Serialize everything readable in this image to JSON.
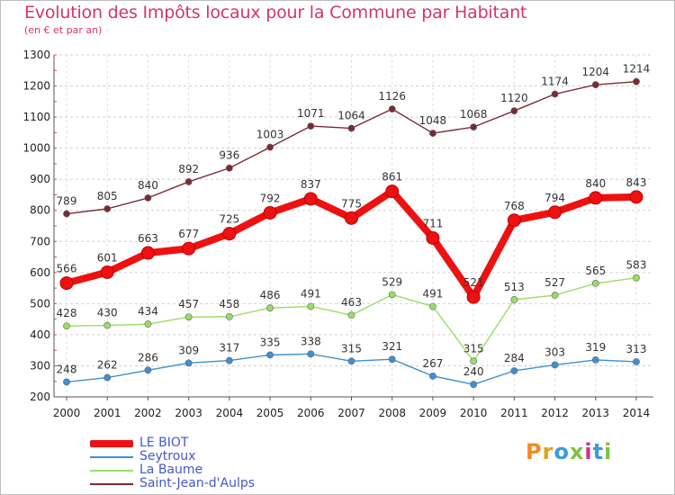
{
  "chart_data": {
    "type": "line",
    "title": "Evolution des Impôts locaux pour la Commune par Habitant",
    "subtitle": "(en € et par an)",
    "xlabel": "",
    "ylabel": "",
    "categories": [
      "2000",
      "2001",
      "2002",
      "2003",
      "2004",
      "2005",
      "2006",
      "2007",
      "2008",
      "2009",
      "2010",
      "2011",
      "2012",
      "2013",
      "2014"
    ],
    "yticks": [
      200,
      300,
      400,
      500,
      600,
      700,
      800,
      900,
      1000,
      1100,
      1200,
      1300
    ],
    "ylim": [
      200,
      1300
    ],
    "grid": "horizontal dashed",
    "legend_position": "bottom-left",
    "series": [
      {
        "name": "Saint-Jean-d'Aulps",
        "color": "#7a2a35",
        "values": [
          789,
          805,
          840,
          892,
          936,
          1003,
          1071,
          1064,
          1126,
          1048,
          1068,
          1120,
          1174,
          1204,
          1214
        ]
      },
      {
        "name": "LE BIOT",
        "color": "#ee1111",
        "values": [
          566,
          601,
          663,
          677,
          725,
          792,
          837,
          775,
          861,
          711,
          521,
          768,
          794,
          840,
          843
        ]
      },
      {
        "name": "La Baume",
        "color": "#99dd66",
        "values": [
          428,
          430,
          434,
          457,
          458,
          486,
          491,
          463,
          529,
          491,
          315,
          513,
          527,
          565,
          583
        ]
      },
      {
        "name": "Seytroux",
        "color": "#3f8fd0",
        "values": [
          248,
          262,
          286,
          309,
          317,
          335,
          338,
          315,
          321,
          267,
          240,
          284,
          303,
          319,
          313
        ]
      }
    ],
    "legend": [
      "LE BIOT",
      "Seytroux",
      "La Baume",
      "Saint-Jean-d'Aulps"
    ]
  },
  "logo": {
    "text": "Proxiti",
    "colors": [
      "#f28c1e",
      "#e2a11a",
      "#3b9bd8",
      "#7cc242",
      "#d62d8a",
      "#3b9bd8",
      "#7cc242"
    ]
  }
}
